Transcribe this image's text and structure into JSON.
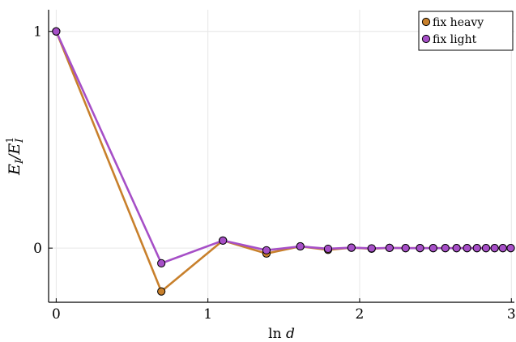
{
  "chart_data": {
    "type": "line",
    "xlabel": "ln d",
    "ylabel": "E_I / E_I^1",
    "xlim": [
      -0.05,
      3.02
    ],
    "ylim": [
      -0.25,
      1.1
    ],
    "xticks": [
      0,
      1,
      2,
      3
    ],
    "xtick_labels": [
      "0",
      "1",
      "2",
      "3"
    ],
    "yticks": [
      0,
      1
    ],
    "ytick_labels": [
      "0",
      "1"
    ],
    "grid": true,
    "legend_position": "top-right",
    "x": [
      0.0,
      0.693,
      1.099,
      1.386,
      1.609,
      1.792,
      1.946,
      2.079,
      2.197,
      2.303,
      2.398,
      2.485,
      2.565,
      2.639,
      2.708,
      2.773,
      2.833,
      2.89,
      2.944,
      2.996
    ],
    "series": [
      {
        "name": "fix heavy",
        "color": "#c8802c",
        "values": [
          1.0,
          -0.2,
          0.035,
          -0.025,
          0.008,
          -0.008,
          0.002,
          -0.003,
          0.001,
          0.0,
          0.0,
          0.0,
          0.0,
          0.0,
          0.0,
          0.0,
          0.0,
          0.0,
          0.0,
          0.0
        ]
      },
      {
        "name": "fix light",
        "color": "#a64fc7",
        "values": [
          1.0,
          -0.07,
          0.035,
          -0.01,
          0.008,
          -0.003,
          0.002,
          -0.001,
          0.001,
          0.0,
          0.0,
          0.0,
          0.0,
          0.0,
          0.0,
          0.0,
          0.0,
          0.0,
          0.0,
          0.0
        ]
      }
    ]
  }
}
